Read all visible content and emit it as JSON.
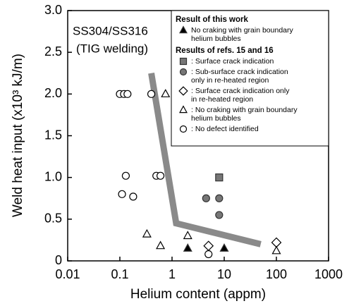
{
  "chart_data": {
    "type": "scatter",
    "xlabel": "Helium content (appm)",
    "ylabel": "Weld heat input (x10³ kJ/m)",
    "annotations": [
      "SS304/SS316",
      "(TIG welding)"
    ],
    "log_x": true,
    "xlim": [
      0.01,
      1000
    ],
    "xticks": [
      0.01,
      0.1,
      1,
      10,
      100,
      1000
    ],
    "ylim": [
      0,
      3
    ],
    "yticks": [
      0,
      0.5,
      {
        "value": 1,
        "label": "1.0"
      },
      1.5,
      {
        "value": 2,
        "label": "2.0"
      },
      2.5,
      {
        "value": 3,
        "label": "3.0"
      }
    ],
    "boundary": {
      "x": [
        0.4,
        1.2,
        50
      ],
      "y": [
        2.25,
        0.45,
        0.2
      ],
      "color": "#8a8a8a"
    },
    "groups": [
      {
        "title": "Result of this work",
        "series": [
          {
            "name": "No craking with grain boundary\nhelium bubbles",
            "marker": "triangle",
            "filled": true,
            "color": "#000000",
            "x": [
              2,
              10
            ],
            "values": [
              0.15,
              0.15
            ]
          }
        ]
      },
      {
        "title": "Results of refs. 15 and 16",
        "series": [
          {
            "name": ": Surface crack indication",
            "marker": "square",
            "filled": true,
            "color": "#777777",
            "x": [
              8
            ],
            "values": [
              1.0
            ]
          },
          {
            "name": ": Sub-surface crack indication\nonly in re-heated region",
            "marker": "circle",
            "filled": true,
            "color": "#777777",
            "x": [
              4.5,
              8,
              8
            ],
            "values": [
              0.75,
              0.75,
              0.55
            ]
          },
          {
            "name": ": Surface crack indication only\nin re-heated region",
            "marker": "diamond",
            "filled": false,
            "color": "#000000",
            "x": [
              5,
              100
            ],
            "values": [
              0.18,
              0.22
            ]
          },
          {
            "name": ": No craking with grain boundary\nhelium bubbles",
            "marker": "triangle",
            "filled": false,
            "color": "#000000",
            "x": [
              0.75,
              0.33,
              0.6,
              2,
              100
            ],
            "values": [
              2.0,
              0.32,
              0.18,
              0.3,
              0.12
            ]
          },
          {
            "name": ": No defect identified",
            "marker": "circle",
            "filled": false,
            "color": "#000000",
            "x": [
              0.1,
              0.12,
              0.14,
              0.4,
              0.13,
              0.11,
              0.18,
              0.5,
              0.6,
              5
            ],
            "values": [
              2.0,
              2.0,
              2.0,
              2.0,
              1.02,
              0.8,
              0.77,
              1.02,
              1.02,
              0.08
            ]
          }
        ]
      }
    ]
  }
}
